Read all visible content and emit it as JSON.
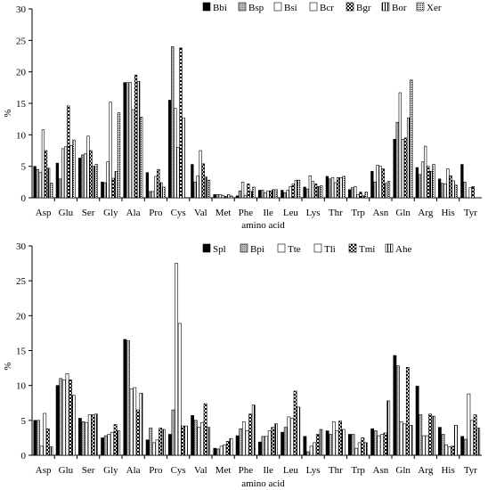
{
  "chart_data": [
    {
      "type": "bar",
      "xlabel": "amino acid",
      "ylabel": "%",
      "ylim": [
        0,
        30
      ],
      "yticks": [
        0,
        5,
        10,
        15,
        20,
        25,
        30
      ],
      "legend_position": "top",
      "categories": [
        "Asp",
        "Glu",
        "Ser",
        "Gly",
        "Ala",
        "Pro",
        "Cys",
        "Val",
        "Met",
        "Phe",
        "Ile",
        "Leu",
        "Lys",
        "Thr",
        "Trp",
        "Asn",
        "Gln",
        "Arg",
        "His",
        "Tyr"
      ],
      "series": [
        {
          "name": "Bbi",
          "fill": "solid-black",
          "values": [
            5.0,
            5.5,
            6.3,
            2.5,
            18.3,
            4.0,
            15.5,
            5.3,
            0.5,
            0.3,
            1.2,
            1.2,
            1.7,
            3.4,
            1.3,
            4.2,
            9.3,
            4.8,
            3.0,
            5.3
          ]
        },
        {
          "name": "Bsp",
          "fill": "gray",
          "values": [
            4.5,
            3.0,
            6.8,
            2.4,
            18.3,
            1.0,
            24.0,
            2.5,
            0.5,
            1.1,
            1.2,
            0.8,
            1.4,
            3.0,
            1.6,
            2.5,
            12.0,
            3.7,
            2.3,
            2.5
          ]
        },
        {
          "name": "Bsi",
          "fill": "white",
          "values": [
            4.0,
            7.8,
            7.0,
            5.7,
            18.3,
            1.0,
            14.2,
            3.5,
            0.5,
            2.5,
            0.8,
            1.2,
            3.5,
            3.2,
            1.8,
            5.2,
            16.7,
            5.7,
            2.2,
            0.0
          ]
        },
        {
          "name": "Bcr",
          "fill": "white",
          "values": [
            10.8,
            8.1,
            9.8,
            15.2,
            14.0,
            3.4,
            8.0,
            7.5,
            0.4,
            0.4,
            1.1,
            1.8,
            2.6,
            2.4,
            0.5,
            5.0,
            9.3,
            8.2,
            4.6,
            1.6
          ]
        },
        {
          "name": "Bgr",
          "fill": "checker",
          "values": [
            7.5,
            14.6,
            7.5,
            3.1,
            19.5,
            4.5,
            23.8,
            5.4,
            0.2,
            2.2,
            1.1,
            2.2,
            2.2,
            3.2,
            0.9,
            4.6,
            9.5,
            5.0,
            3.5,
            1.8
          ]
        },
        {
          "name": "Bor",
          "fill": "vertical-lines",
          "values": [
            4.7,
            8.3,
            5.0,
            4.2,
            18.5,
            2.4,
            12.7,
            3.3,
            0.5,
            1.0,
            1.3,
            2.8,
            1.8,
            3.2,
            0.3,
            2.3,
            12.7,
            4.2,
            2.7,
            0.0
          ]
        },
        {
          "name": "Xer",
          "fill": "dotted",
          "values": [
            2.3,
            9.2,
            5.3,
            13.5,
            12.8,
            1.7,
            0.0,
            2.8,
            0.3,
            1.7,
            1.3,
            2.8,
            1.9,
            3.4,
            0.9,
            2.6,
            18.7,
            5.3,
            2.0,
            0.0
          ]
        }
      ]
    },
    {
      "type": "bar",
      "xlabel": "amino acid",
      "ylabel": "%",
      "ylim": [
        0,
        30
      ],
      "yticks": [
        0,
        5,
        10,
        15,
        20,
        25,
        30
      ],
      "legend_position": "top",
      "categories": [
        "Asp",
        "Glu",
        "Ser",
        "Gly",
        "Ala",
        "Pro",
        "Cys",
        "Val",
        "Met",
        "Phe",
        "Ile",
        "Leu",
        "Lys",
        "Thr",
        "Trp",
        "Asn",
        "Gln",
        "Arg",
        "His",
        "Tyr"
      ],
      "series": [
        {
          "name": "Spl",
          "fill": "solid-black",
          "values": [
            5.0,
            10.0,
            5.3,
            2.5,
            16.6,
            2.2,
            3.0,
            5.7,
            1.0,
            2.8,
            1.9,
            3.3,
            2.7,
            3.5,
            3.0,
            3.8,
            14.3,
            9.9,
            4.0,
            2.7
          ]
        },
        {
          "name": "Bpi",
          "fill": "gray",
          "values": [
            5.0,
            11.0,
            4.8,
            2.8,
            16.4,
            3.9,
            6.5,
            5.0,
            0.9,
            3.8,
            2.7,
            4.0,
            0.5,
            3.0,
            3.0,
            3.5,
            12.8,
            5.8,
            3.0,
            2.3
          ]
        },
        {
          "name": "Tte",
          "fill": "white",
          "values": [
            1.3,
            10.8,
            4.7,
            3.0,
            9.5,
            1.8,
            27.5,
            4.0,
            1.3,
            4.8,
            2.7,
            5.5,
            1.3,
            4.8,
            1.0,
            2.8,
            4.8,
            2.8,
            1.5,
            8.8
          ]
        },
        {
          "name": "Tli",
          "fill": "white",
          "values": [
            6.0,
            11.7,
            5.8,
            3.3,
            9.7,
            2.2,
            18.9,
            4.7,
            1.5,
            3.5,
            3.5,
            5.3,
            1.8,
            3.5,
            1.8,
            3.0,
            4.5,
            2.8,
            1.2,
            5.0
          ]
        },
        {
          "name": "Tmi",
          "fill": "checker",
          "values": [
            3.8,
            10.8,
            5.8,
            4.4,
            6.5,
            3.9,
            4.2,
            7.4,
            2.0,
            5.9,
            4.0,
            9.2,
            3.0,
            4.9,
            2.5,
            3.2,
            12.6,
            5.9,
            1.3,
            5.8
          ]
        },
        {
          "name": "Ahe",
          "fill": "vertical-lines",
          "values": [
            1.2,
            8.6,
            5.9,
            3.5,
            8.9,
            3.7,
            4.2,
            4.0,
            2.4,
            7.2,
            4.5,
            6.9,
            3.7,
            3.7,
            1.8,
            7.8,
            4.3,
            5.6,
            4.3,
            3.9
          ]
        }
      ]
    }
  ]
}
